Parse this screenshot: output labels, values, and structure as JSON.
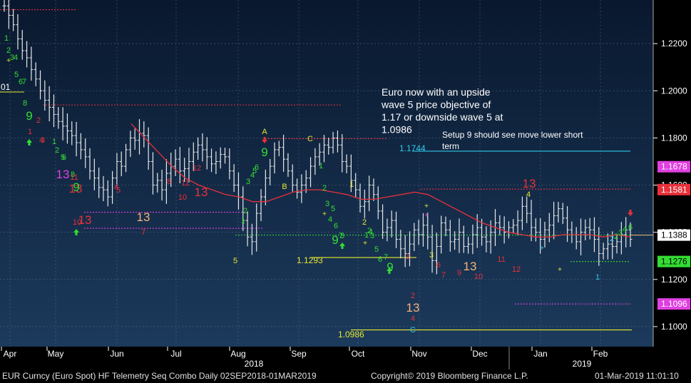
{
  "chart_data": {
    "type": "candlestick",
    "instrument": "EUR Curncy (Euro Spot)",
    "study": "HF Telemetry Seq Combo",
    "ylim": [
      1.0915,
      1.2385
    ],
    "y_ticks": [
      "1.2200",
      "1.2000",
      "1.1800",
      "1.1600",
      "1.1400",
      "1.1200",
      "1.1000"
    ],
    "x_months": [
      "Apr",
      "May",
      "Jun",
      "Jul",
      "Aug",
      "Sep",
      "Oct",
      "Nov",
      "Dec",
      "Jan",
      "Feb"
    ],
    "x_years": [
      "2018",
      "2019"
    ],
    "moving_average": [
      1.186,
      1.18,
      1.174,
      1.168,
      1.163,
      1.16,
      1.158,
      1.156,
      1.155,
      1.153,
      1.153,
      1.155,
      1.157,
      1.158,
      1.158,
      1.157,
      1.156,
      1.154,
      1.154,
      1.155,
      1.156,
      1.157,
      1.156,
      1.153,
      1.15,
      1.147,
      1.144,
      1.142,
      1.14,
      1.139,
      1.138,
      1.138,
      1.139,
      1.139,
      1.139,
      1.138,
      1.139,
      1.138
    ],
    "price_series": [
      1.236,
      1.232,
      1.228,
      1.222,
      1.217,
      1.214,
      1.209,
      1.205,
      1.2,
      1.196,
      1.193,
      1.19,
      1.187,
      1.185,
      1.183,
      1.181,
      1.178,
      1.175,
      1.172,
      1.166,
      1.163,
      1.159,
      1.158,
      1.155,
      1.163,
      1.17,
      1.168,
      1.175,
      1.18,
      1.179,
      1.182,
      1.181,
      1.17,
      1.16,
      1.162,
      1.158,
      1.165,
      1.168,
      1.171,
      1.166,
      1.167,
      1.17,
      1.174,
      1.177,
      1.175,
      1.172,
      1.169,
      1.17,
      1.173,
      1.172,
      1.166,
      1.16,
      1.155,
      1.145,
      1.138,
      1.136,
      1.148,
      1.155,
      1.163,
      1.168,
      1.175,
      1.176,
      1.171,
      1.166,
      1.16,
      1.157,
      1.16,
      1.163,
      1.168,
      1.172,
      1.174,
      1.177,
      1.176,
      1.18,
      1.177,
      1.17,
      1.168,
      1.162,
      1.158,
      1.151,
      1.153,
      1.16,
      1.156,
      1.149,
      1.14,
      1.142,
      1.145,
      1.137,
      1.133,
      1.131,
      1.135,
      1.141,
      1.139,
      1.143,
      1.138,
      1.128,
      1.134,
      1.144,
      1.141,
      1.136,
      1.137,
      1.14,
      1.134,
      1.135,
      1.139,
      1.142,
      1.138,
      1.136,
      1.14,
      1.144,
      1.142,
      1.14,
      1.142,
      1.143,
      1.145,
      1.151,
      1.148,
      1.142,
      1.14,
      1.137,
      1.141,
      1.143,
      1.147,
      1.15,
      1.146,
      1.141,
      1.139,
      1.136,
      1.14,
      1.142,
      1.141,
      1.137,
      1.131,
      1.133,
      1.135,
      1.134,
      1.136,
      1.139,
      1.141,
      1.137
    ],
    "hlines": [
      {
        "value": 1.2344,
        "color": "#e8303a",
        "style": "dashed",
        "label": ""
      },
      {
        "value": 1.194,
        "color": "#e8303a",
        "style": "dashed",
        "label": ""
      },
      {
        "value": 1.1797,
        "color": "#e8303a",
        "style": "dashed",
        "label": ""
      },
      {
        "value": 1.1744,
        "color": "#33c8e8",
        "style": "solid",
        "label": "1.1744"
      },
      {
        "value": 1.1583,
        "color": "#e8303a",
        "style": "dashed",
        "label": ""
      },
      {
        "value": 1.1485,
        "color": "#e040e0",
        "style": "dashed",
        "label": ""
      },
      {
        "value": 1.1417,
        "color": "#e040e0",
        "style": "dashed",
        "label": ""
      },
      {
        "value": 1.1388,
        "color": "#33dd33",
        "style": "dashed",
        "label": ""
      },
      {
        "value": 1.1293,
        "color": "#e8e830",
        "style": "solid",
        "label": "1.1293"
      },
      {
        "value": 1.1276,
        "color": "#33dd33",
        "style": "dashed",
        "label": ""
      },
      {
        "value": 1.1096,
        "color": "#e040e0",
        "style": "dashed",
        "label": ""
      },
      {
        "value": 1.0986,
        "color": "#e8e830",
        "style": "solid",
        "label": "1.0986"
      }
    ],
    "right_labels": [
      {
        "value": "1.1678",
        "bg": "#e040e0",
        "fg": "#ffffff"
      },
      {
        "value": "1.1581",
        "bg": "#e8303a",
        "fg": "#ffffff"
      },
      {
        "value": "1.1388",
        "bg": "#ffffff",
        "fg": "#000000"
      },
      {
        "value": "1.1276",
        "bg": "#33dd33",
        "fg": "#000000"
      },
      {
        "value": "1.1096",
        "bg": "#e040e0",
        "fg": "#ffffff"
      }
    ],
    "left_edge_label": "01",
    "annotations": [
      {
        "text": "Euro now with an upside wave 5 price objective of 1.17 or downside wave 5 at 1.0986",
        "lines": [
          "Euro now with an upside",
          "wave 5 price objective of",
          "1.17 or downside wave 5 at",
          "1.0986"
        ]
      },
      {
        "text": "Setup 9 should see move lower short term",
        "lines": [
          "Setup 9 should see move lower short",
          "term"
        ]
      }
    ],
    "sequential_counts": [
      {
        "t": "1",
        "c": "#33dd33",
        "s": 11
      },
      {
        "t": "2",
        "c": "#33dd33",
        "s": 11
      },
      {
        "t": "3",
        "c": "#33dd33",
        "s": 11
      },
      {
        "t": "4",
        "c": "#33dd33",
        "s": 11
      },
      {
        "t": "5",
        "c": "#33dd33",
        "s": 11
      },
      {
        "t": "6",
        "c": "#33dd33",
        "s": 11
      },
      {
        "t": "7",
        "c": "#33dd33",
        "s": 11
      },
      {
        "t": "8",
        "c": "#33dd33",
        "s": 11
      },
      {
        "t": "9",
        "c": "#33dd33",
        "s": 17
      },
      {
        "t": "1",
        "c": "#e8303a",
        "s": 11
      },
      {
        "t": "2",
        "c": "#e8303a",
        "s": 11
      },
      {
        "t": "3",
        "c": "#e8303a",
        "s": 11
      },
      {
        "t": "4",
        "c": "#e8303a",
        "s": 11
      },
      {
        "t": "1",
        "c": "#33dd33",
        "s": 11
      },
      {
        "t": "2",
        "c": "#33dd33",
        "s": 11
      },
      {
        "t": "5",
        "c": "#33dd33",
        "s": 11
      },
      {
        "t": "6",
        "c": "#33dd33",
        "s": 11
      },
      {
        "t": "13",
        "c": "#e040e0",
        "s": 17
      },
      {
        "t": "8",
        "c": "#33dd33",
        "s": 11
      },
      {
        "t": "11",
        "c": "#e8303a",
        "s": 11
      },
      {
        "t": "13",
        "c": "#e8303a",
        "s": 17
      },
      {
        "t": "9",
        "c": "#33dd33",
        "s": 17
      },
      {
        "t": "13",
        "c": "#e8303a",
        "s": 17
      },
      {
        "t": "10",
        "c": "#e8303a",
        "s": 11
      },
      {
        "t": "4",
        "c": "#e8303a",
        "s": 11
      },
      {
        "t": "5",
        "c": "#e8303a",
        "s": 11
      },
      {
        "t": "13",
        "c": "#f4b37a",
        "s": 17
      },
      {
        "t": "7",
        "c": "#e8303a",
        "s": 11
      },
      {
        "t": "8",
        "c": "#e8303a",
        "s": 11
      },
      {
        "t": "10",
        "c": "#e8303a",
        "s": 11
      },
      {
        "t": "11",
        "c": "#e8303a",
        "s": 11
      },
      {
        "t": "12",
        "c": "#e8303a",
        "s": 11
      },
      {
        "t": "13",
        "c": "#e8303a",
        "s": 17
      },
      {
        "t": "5",
        "c": "#e8e830",
        "s": 11
      },
      {
        "t": "1",
        "c": "#33dd33",
        "s": 11
      },
      {
        "t": "2",
        "c": "#33dd33",
        "s": 11
      },
      {
        "t": "3",
        "c": "#33dd33",
        "s": 11
      },
      {
        "t": "4",
        "c": "#33dd33",
        "s": 11
      },
      {
        "t": "5",
        "c": "#33dd33",
        "s": 11
      },
      {
        "t": "6",
        "c": "#33dd33",
        "s": 11
      },
      {
        "t": "A",
        "c": "#e8e830",
        "s": 11
      },
      {
        "t": "9",
        "c": "#33dd33",
        "s": 17
      },
      {
        "t": "B",
        "c": "#e8e830",
        "s": 11
      },
      {
        "t": "C",
        "c": "#e8e830",
        "s": 11
      },
      {
        "t": "1",
        "c": "#33dd33",
        "s": 11
      },
      {
        "t": "2",
        "c": "#33dd33",
        "s": 11
      },
      {
        "t": "3",
        "c": "#33dd33",
        "s": 11
      },
      {
        "t": "4",
        "c": "#33dd33",
        "s": 11
      },
      {
        "t": "5",
        "c": "#33dd33",
        "s": 11
      },
      {
        "t": "6",
        "c": "#33dd33",
        "s": 11
      },
      {
        "t": "7",
        "c": "#33dd33",
        "s": 11
      },
      {
        "t": "8",
        "c": "#33dd33",
        "s": 11
      },
      {
        "t": "9",
        "c": "#33dd33",
        "s": 17
      },
      {
        "t": "1",
        "c": "#e8e830",
        "s": 11
      },
      {
        "t": "2",
        "c": "#e8e830",
        "s": 11
      },
      {
        "t": "1",
        "c": "#33dd33",
        "s": 11
      },
      {
        "t": "2",
        "c": "#33dd33",
        "s": 11
      },
      {
        "t": "4",
        "c": "#33dd33",
        "s": 11
      },
      {
        "t": "3",
        "c": "#33dd33",
        "s": 11
      },
      {
        "t": "5",
        "c": "#33dd33",
        "s": 11
      },
      {
        "t": "6",
        "c": "#33dd33",
        "s": 11
      },
      {
        "t": "7",
        "c": "#33dd33",
        "s": 11
      },
      {
        "t": "9",
        "c": "#33dd33",
        "s": 17
      },
      {
        "t": "1",
        "c": "#e8303a",
        "s": 11
      },
      {
        "t": "2",
        "c": "#e8303a",
        "s": 11
      },
      {
        "t": "13",
        "c": "#f4b37a",
        "s": 17
      },
      {
        "t": "4",
        "c": "#e8303a",
        "s": 11
      },
      {
        "t": "C",
        "c": "#33c8e8",
        "s": 11
      },
      {
        "t": "3",
        "c": "#e8e830",
        "s": 11
      },
      {
        "t": "6",
        "c": "#e8303a",
        "s": 11
      },
      {
        "t": "7",
        "c": "#e8303a",
        "s": 11
      },
      {
        "t": "9",
        "c": "#e8303a",
        "s": 11
      },
      {
        "t": "13",
        "c": "#f4b37a",
        "s": 17
      },
      {
        "t": "10",
        "c": "#e8303a",
        "s": 11
      },
      {
        "t": "11",
        "c": "#e8303a",
        "s": 11
      },
      {
        "t": "12",
        "c": "#e8303a",
        "s": 11
      },
      {
        "t": "13",
        "c": "#e8303a",
        "s": 17
      },
      {
        "t": "4",
        "c": "#e8e830",
        "s": 11
      },
      {
        "t": "1",
        "c": "#33c8e8",
        "s": 11
      },
      {
        "t": "2",
        "c": "#33c8e8",
        "s": 11
      },
      {
        "t": "2",
        "c": "#33dd33",
        "s": 11
      },
      {
        "t": "3",
        "c": "#33dd33",
        "s": 11
      },
      {
        "t": "4",
        "c": "#33dd33",
        "s": 11
      },
      {
        "t": "6",
        "c": "#33dd33",
        "s": 11
      },
      {
        "t": "9",
        "c": "#33dd33",
        "s": 17
      }
    ],
    "arrows": [
      {
        "dir": "up",
        "c": "#33dd33"
      },
      {
        "dir": "up",
        "c": "#33dd33"
      },
      {
        "dir": "down",
        "c": "#e8303a"
      },
      {
        "dir": "up",
        "c": "#33dd33"
      },
      {
        "dir": "up",
        "c": "#33dd33"
      },
      {
        "dir": "down",
        "c": "#e8303a"
      }
    ]
  },
  "footer": {
    "left": "EUR Curncy (Euro Spot) HF Telemetry Seq Combo  Daily 02SEP2018-01MAR2019",
    "center": "Copyright© 2019 Bloomberg Finance L.P.",
    "right": "01-Mar-2019 11:01:10"
  },
  "colors": {
    "background_top": "#09182e",
    "background_bottom": "#1c3a5c",
    "price_bars": "#e8e8e8",
    "moving_average": "#e8303a",
    "axis_text": "#ffffff"
  }
}
